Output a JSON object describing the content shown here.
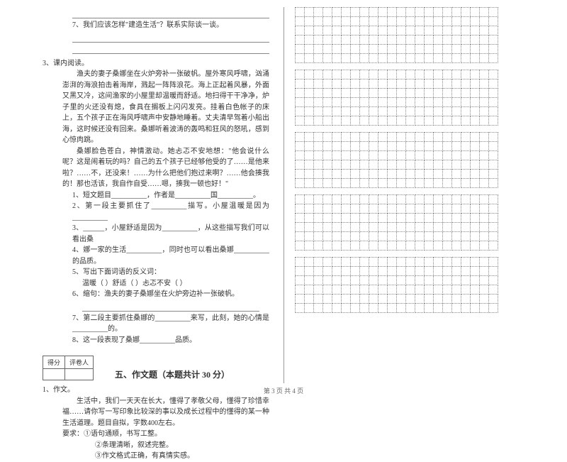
{
  "left": {
    "q7": "7、我们应该怎样\"建造生活\"？联系实际谈一谈。",
    "sec3_title": "3、课内阅读。",
    "passage": [
      "渔夫的妻子桑娜坐在火炉旁补一张破帆。屋外寒风呼啸，汹涌澎湃的海浪拍击着海岸，溅起一阵阵浪花。海上正起着风暴，外面又黑又冷，这间渔家的小屋里却温暖而舒适。地扫得干干净净，炉子里的火还没有熄，食具在搁板上闪闪发亮。挂着白色帐子的床上，五个孩子正在海风呼啸声中安静地睡着。丈夫清早驾着小船出海，这时候还没有回来。桑娜听着波涛的轰鸣和狂风的怒吼，感到心惊肉跳。",
      "桑娜脸色苍白，神情激动。她忐忑不安地想：\"他会说什么呢？这是闹着玩的吗？自己的五个孩子已经够他受的了……是他来啦？……不，还没来！……为什么把他们抱过来啊？……他会揍我的！那也活该，我自作自受……嗯，揍我一顿也好！\""
    ],
    "q1": "1、短文题目__________，作者是__________国__________。",
    "q2": "2、第一段主要抓住了__________描写。小屋温暖是因为__________",
    "q3_a": "3、______，小屋舒适是因为__________，从这些描写我们可以看出桑",
    "q4": "4、娜一家的生活__________，同时也可以看出桑娜__________的品质。",
    "q5": "5、写出下面词语的反义词：",
    "q5_words": "温暖（        ）舒适（        ）忐忑不安（        ）",
    "q6": "6、缩句：渔夫的妻子桑娜坐在火炉旁边补一张破帆。",
    "q7b": "7、第二段主要抓住桑娜的__________来写，此刻，她的心情是__________的。",
    "q8": "8、这一段表现了桑娜__________品质。",
    "score_labels": {
      "a": "得分",
      "b": "评卷人"
    },
    "section5": "五、作文题（本题共计 30 分）",
    "zw_num": "1、作文。",
    "zw_intro": "生活中，我们一天天在长大，懂得了孝敬父母，懂得了珍惜幸福……请你写一写印象比较深的事以及成长过程中的懂得的某一种生活道理。题目自拟，字数400左右。",
    "zw_req": "要求：①语句通顺，书写工整。",
    "zw_req2": "②条理清晰，叙述完整。",
    "zw_req3": "③作文格式正确，有真情实感。"
  },
  "grid": {
    "blocks": 5,
    "rows_per_block": 6,
    "cols": 22
  },
  "footer": "第 3 页 共 4 页"
}
